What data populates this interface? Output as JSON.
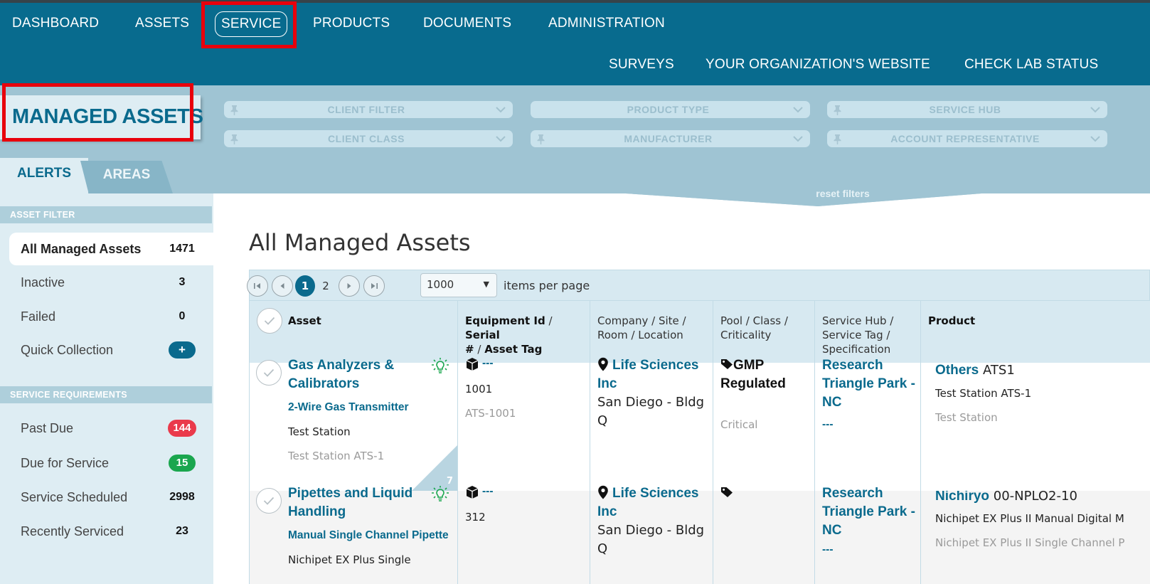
{
  "nav": {
    "primary": [
      "DASHBOARD",
      "ASSETS",
      "SERVICE",
      "PRODUCTS",
      "DOCUMENTS",
      "ADMINISTRATION"
    ],
    "secondary": [
      "SURVEYS",
      "YOUR ORGANIZATION'S WEBSITE",
      "CHECK LAB STATUS"
    ],
    "active": "SERVICE"
  },
  "page_title": "MANAGED ASSETS",
  "filters": {
    "client_filter": "CLIENT FILTER",
    "product_type": "PRODUCT TYPE",
    "service_hub": "SERVICE HUB",
    "client_class": "CLIENT CLASS",
    "manufacturer": "MANUFACTURER",
    "account_representative": "ACCOUNT REPRESENTATIVE",
    "reset": "reset filters"
  },
  "tabs": {
    "alerts": "ALERTS",
    "areas": "AREAS"
  },
  "sidebar": {
    "asset_filter_header": "ASSET FILTER",
    "asset_filter": [
      {
        "label": "All Managed Assets",
        "count": "1471"
      },
      {
        "label": "Inactive",
        "count": "3"
      },
      {
        "label": "Failed",
        "count": "0"
      },
      {
        "label": "Quick Collection",
        "count": "+"
      }
    ],
    "service_header": "SERVICE REQUIREMENTS",
    "service": [
      {
        "label": "Past Due",
        "count": "144"
      },
      {
        "label": "Due for Service",
        "count": "15"
      },
      {
        "label": "Service Scheduled",
        "count": "2998"
      },
      {
        "label": "Recently Serviced",
        "count": "23"
      }
    ]
  },
  "main": {
    "title": "All Managed Assets",
    "pager": {
      "pages": [
        "1",
        "2"
      ],
      "current_page": "1",
      "per_page": "1000",
      "per_page_label": "items per page"
    },
    "columns": {
      "asset": "Asset",
      "equipment_id": "Equipment Id",
      "serial": "Serial",
      "hash": "#",
      "asset_tag": "Asset Tag",
      "company": "Company / Site /",
      "room": "Room / Location",
      "pool": "Pool / Class /",
      "criticality": "Criticality",
      "service_hub": "Service Hub /",
      "service_tag": "Service Tag /",
      "specification": "Specification",
      "product": "Product",
      "sep": "/"
    },
    "rows": [
      {
        "asset_line1": "Gas Analyzers &",
        "asset_line2": "Calibrators",
        "model": "2-Wire Gas Transmitter",
        "name": "Test Station",
        "sub": "Test Station ATS-1",
        "corner_count": "7",
        "equip_id": "---",
        "serial": "1001",
        "tag": "ATS-1001",
        "company_line1": "Life Sciences",
        "company_line2": "Inc",
        "site_line1": "San Diego - Bldg",
        "site_line2": "Q",
        "pool_line1": "GMP",
        "pool_line2": "Regulated",
        "criticality": "Critical",
        "hub_line1": "Research",
        "hub_line2": "Triangle Park -",
        "hub_line3": "NC",
        "service_tag": "---",
        "product_brand": "Others",
        "product_model": "ATS1",
        "product_line2": "Test Station ATS-1",
        "product_line3": "Test Station"
      },
      {
        "asset_line1": "Pipettes and Liquid",
        "asset_line2": "Handling",
        "model": "Manual Single Channel Pipette",
        "name": "Nichipet EX Plus Single",
        "equip_id": "---",
        "serial": "312",
        "company_line1": "Life Sciences",
        "company_line2": "Inc",
        "site_line1": "San Diego - Bldg",
        "site_line2": "Q",
        "hub_line1": "Research",
        "hub_line2": "Triangle Park -",
        "hub_line3": "NC",
        "service_tag": "---",
        "product_brand": "Nichiryo",
        "product_model": "00-NPLO2-10",
        "product_line2": "Nichipet EX Plus II Manual Digital M",
        "product_line3": "Nichipet EX Plus II Single Channel P"
      }
    ]
  },
  "colors": {
    "nav_bg": "#086b8e",
    "band_bg": "#9fc4d3",
    "accent": "#0a6a8d",
    "highlight": "#e8000c",
    "past_due": "#ea3a4b",
    "due_for_service": "#1aa64e"
  }
}
